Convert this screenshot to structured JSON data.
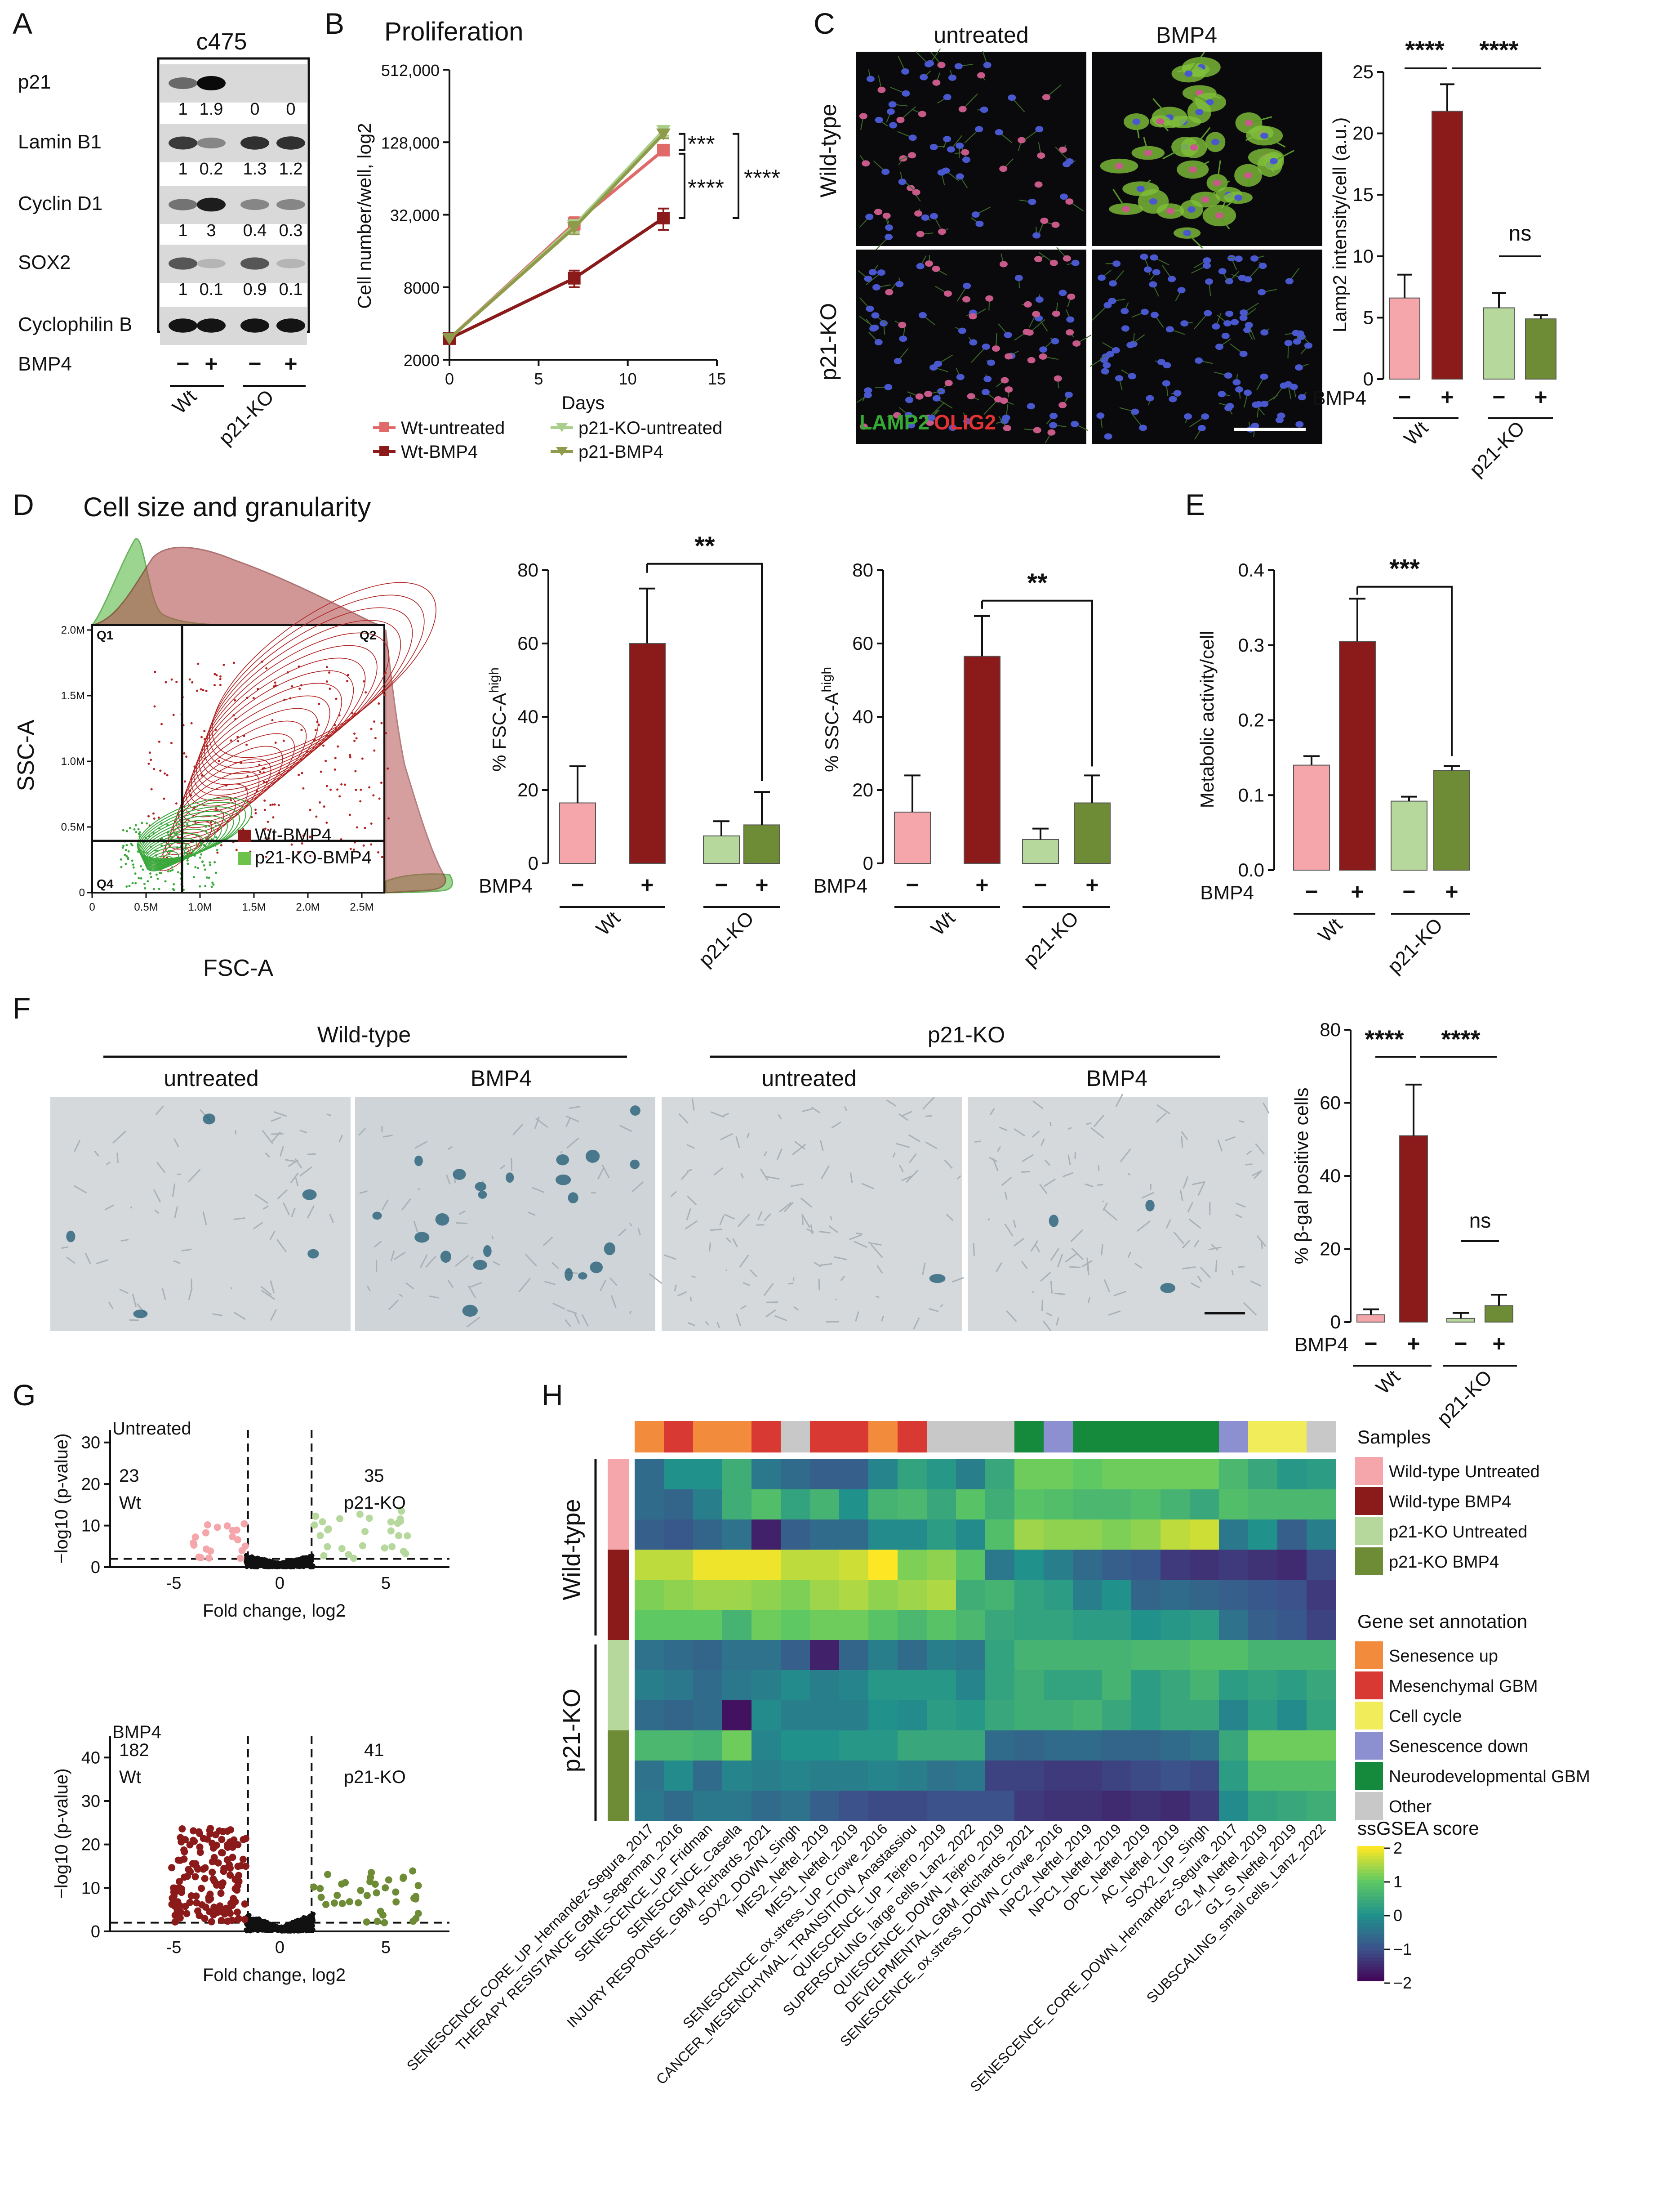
{
  "colors": {
    "wt_untreated": "#f4a6ab",
    "wt_bmp4": "#8b1a1a",
    "ko_untreated": "#b7d89c",
    "ko_bmp4": "#6e8b35",
    "line_wt": "#e06a6a",
    "line_wtb": "#8b1a1a",
    "line_ko": "#a9cf8a",
    "line_kob": "#8f9a4a",
    "ann_senup": "#f28c3c",
    "ann_mes": "#d83a33",
    "ann_cycle": "#f1ec5a",
    "ann_sendown": "#8c8fd0",
    "ann_neuro": "#168a3c",
    "ann_other": "#c8c8c8"
  },
  "panels": {
    "A": "A",
    "B": "B",
    "C": "C",
    "D": "D",
    "E": "E",
    "F": "F",
    "G": "G",
    "H": "H"
  },
  "panelA": {
    "cellline": "c475",
    "rows": [
      {
        "name": "p21",
        "vals": [
          "1",
          "1.9",
          "0",
          "0"
        ]
      },
      {
        "name": "Lamin B1",
        "vals": [
          "1",
          "0.2",
          "1.3",
          "1.2"
        ]
      },
      {
        "name": "Cyclin D1",
        "vals": [
          "1",
          "3",
          "0.4",
          "0.3"
        ]
      },
      {
        "name": "SOX2",
        "vals": [
          "1",
          "0.1",
          "0.9",
          "0.1"
        ]
      },
      {
        "name": "Cyclophilin B",
        "vals": []
      }
    ],
    "bmp4_label": "BMP4",
    "minus": "−",
    "plus": "+",
    "group1": "Wt",
    "group2": "p21-KO"
  },
  "chart_data": [
    {
      "id": "B",
      "type": "line",
      "title": "Proliferation",
      "xlabel": "Days",
      "ylabel": "Cell number/well, log2",
      "x": [
        0,
        7,
        12
      ],
      "yticks": [
        "2000",
        "8000",
        "32,000",
        "128,000",
        "512,000"
      ],
      "xticks": [
        "0",
        "5",
        "10",
        "15"
      ],
      "series": [
        {
          "name": "Wt-untreated",
          "values": [
            3000,
            27000,
            110000
          ]
        },
        {
          "name": "Wt-BMP4",
          "values": [
            3000,
            9500,
            30000
          ]
        },
        {
          "name": "p21-KO-untreated",
          "values": [
            3000,
            26000,
            160000
          ]
        },
        {
          "name": "p21-BMP4",
          "values": [
            3000,
            25000,
            150000
          ]
        }
      ],
      "annotations": [
        "***",
        "****",
        "****"
      ]
    },
    {
      "id": "C",
      "type": "bar",
      "ylabel": "Lamp2 intensity/cell (a.u.)",
      "ylim": [
        0,
        25
      ],
      "yticks": [
        "0",
        "5",
        "10",
        "15",
        "20",
        "25"
      ],
      "categories": [
        "Wt −",
        "Wt +",
        "p21-KO −",
        "p21-KO +"
      ],
      "values": [
        6.6,
        21.8,
        5.8,
        4.9
      ],
      "errors": [
        1.9,
        2.2,
        1.2,
        0.3
      ],
      "annotations": [
        "****",
        "****",
        "ns"
      ]
    },
    {
      "id": "D1",
      "type": "bar",
      "ylabel": "% FSC-A",
      "ylabel_sup": "high",
      "ylim": [
        0,
        80
      ],
      "yticks": [
        "0",
        "20",
        "40",
        "60",
        "80"
      ],
      "categories": [
        "Wt −",
        "Wt +",
        "p21-KO −",
        "p21-KO +"
      ],
      "values": [
        16.5,
        60,
        7.5,
        10.5
      ],
      "errors": [
        10,
        15,
        4,
        9
      ],
      "annotations": [
        "**"
      ]
    },
    {
      "id": "D2",
      "type": "bar",
      "ylabel": "% SSC-A",
      "ylabel_sup": "high",
      "ylim": [
        0,
        80
      ],
      "yticks": [
        "0",
        "20",
        "40",
        "60",
        "80"
      ],
      "categories": [
        "Wt −",
        "Wt +",
        "p21-KO −",
        "p21-KO +"
      ],
      "values": [
        14,
        56.5,
        6.5,
        16.5
      ],
      "errors": [
        10,
        11,
        3,
        7.5
      ],
      "annotations": [
        "**"
      ]
    },
    {
      "id": "E",
      "type": "bar",
      "ylabel": "Metabolic activity/cell",
      "ylim": [
        0,
        0.4
      ],
      "yticks": [
        "0.0",
        "0.1",
        "0.2",
        "0.3",
        "0.4"
      ],
      "categories": [
        "Wt −",
        "Wt +",
        "p21-KO −",
        "p21-KO +"
      ],
      "values": [
        0.14,
        0.305,
        0.092,
        0.133
      ],
      "errors": [
        0.012,
        0.057,
        0.006,
        0.006
      ],
      "annotations": [
        "***"
      ]
    },
    {
      "id": "F",
      "type": "bar",
      "ylabel": "% β-gal positive cells",
      "ylim": [
        0,
        80
      ],
      "yticks": [
        "0",
        "20",
        "40",
        "60",
        "80"
      ],
      "categories": [
        "Wt −",
        "Wt +",
        "p21-KO −",
        "p21-KO +"
      ],
      "values": [
        2,
        51,
        1,
        4.5
      ],
      "errors": [
        1.5,
        14,
        1.5,
        3
      ],
      "annotations": [
        "****",
        "****",
        "ns"
      ]
    },
    {
      "id": "G1",
      "type": "scatter",
      "title": "Untreated",
      "xlabel": "Fold change, log2",
      "ylabel": "−log10 (p-value)",
      "xticks": [
        "-5",
        "0",
        "5"
      ],
      "yticks": [
        "0",
        "10",
        "20",
        "30"
      ],
      "left_count": "23",
      "left_label": "Wt",
      "right_count": "35",
      "right_label": "p21-KO"
    },
    {
      "id": "G2",
      "type": "scatter",
      "title": "BMP4",
      "xlabel": "Fold change, log2",
      "ylabel": "−log10 (p-value)",
      "xticks": [
        "-5",
        "0",
        "5"
      ],
      "yticks": [
        "0",
        "10",
        "20",
        "30",
        "40"
      ],
      "left_count": "182",
      "left_label": "Wt",
      "right_count": "41",
      "right_label": "p21-KO"
    },
    {
      "id": "H",
      "type": "heatmap",
      "row_groups": [
        "Wild-type",
        "p21-KO"
      ],
      "columns": [
        "SENESCENCE CORE_UP_Hernandez-Segura_2017",
        "THERAPY RESISTANCE GBM_Segerman_2016",
        "SENESCENCE_UP_Fridman",
        "SENESCENCE_Casella",
        "INJURY RESPONSE_GBM_Richards_2021",
        "SOX2_DOWN_Singh",
        "MES2_Neftel_2019",
        "MES1_Neftel_2019",
        "SENESCENCE_ox.stress_UP_Crowe_2016",
        "CANCER_MESENCHYMAL_TRANSITION_Anastassiou",
        "QUIESCENCE_UP_Tejero_2019",
        "SUPERSCALING_large cells_Lanz_2022",
        "QUIESCENCE_DOWN_Tejero_2019",
        "DEVELPMENTAL_GBM_Richards_2021",
        "SENESCENCE_ox.stress_DOWN_Crowe_2016",
        "NPC2_Neftel_2019",
        "NPC1_Neftel_2019",
        "OPC_Neftel_2019",
        "AC_Neftel_2019",
        "SOX2_UP_Singh",
        "SENESCENCE_CORE_DOWN_Hernandez-Segura_2017",
        "G2_M_Neftel_2019",
        "G1_S_Neftel_2019",
        "SUBSCALING_small cells_Lanz_2022"
      ],
      "column_annotation": [
        "ann_senup",
        "ann_mes",
        "ann_senup",
        "ann_senup",
        "ann_mes",
        "ann_other",
        "ann_mes",
        "ann_mes",
        "ann_senup",
        "ann_mes",
        "ann_other",
        "ann_other",
        "ann_other",
        "ann_neuro",
        "ann_sendown",
        "ann_neuro",
        "ann_neuro",
        "ann_neuro",
        "ann_neuro",
        "ann_neuro",
        "ann_sendown",
        "ann_cycle",
        "ann_cycle",
        "ann_other"
      ],
      "row_samples": [
        "wt_untreated",
        "wt_untreated",
        "wt_untreated",
        "wt_bmp4",
        "wt_bmp4",
        "wt_bmp4",
        "ko_untreated",
        "ko_untreated",
        "ko_untreated",
        "ko_bmp4",
        "ko_bmp4",
        "ko_bmp4"
      ],
      "values": [
        [
          -0.6,
          0,
          0,
          0.5,
          -0.4,
          -0.6,
          -0.8,
          -0.8,
          -0.2,
          0.3,
          0.1,
          -0.3,
          0.4,
          1.1,
          1.1,
          1.0,
          1.1,
          1.1,
          1.1,
          1.1,
          0.7,
          0.4,
          0.1,
          0.2
        ],
        [
          -0.6,
          -0.7,
          -0.3,
          0.5,
          0.8,
          0.3,
          0.6,
          0.0,
          0.6,
          0.7,
          0.4,
          0.9,
          0.5,
          0.9,
          0.8,
          0.7,
          0.7,
          0.8,
          0.6,
          0.4,
          0.8,
          0.7,
          0.7,
          0.7
        ],
        [
          -0.8,
          -0.9,
          -0.7,
          -0.5,
          -1.6,
          -0.8,
          -0.6,
          -0.6,
          -0.1,
          -0.1,
          0.2,
          -0.1,
          0.8,
          1.4,
          1.3,
          1.3,
          1.2,
          1.3,
          1.6,
          1.7,
          -0.4,
          0.0,
          -0.8,
          -0.3
        ],
        [
          1.6,
          1.6,
          1.9,
          1.9,
          1.9,
          1.6,
          1.6,
          1.7,
          2.0,
          1.2,
          1.3,
          0.9,
          -0.4,
          0.0,
          -0.3,
          -0.6,
          -0.8,
          -0.9,
          -1.3,
          -1.4,
          -1.3,
          -1.4,
          -1.5,
          -1.1
        ],
        [
          1.2,
          1.3,
          1.4,
          1.4,
          1.3,
          1.2,
          1.4,
          1.5,
          1.3,
          1.4,
          1.5,
          0.5,
          0.6,
          0.3,
          0.2,
          -0.3,
          0.0,
          -0.7,
          -0.6,
          -0.7,
          -0.8,
          -0.9,
          -1.0,
          -1.3
        ],
        [
          1.0,
          1.0,
          1.0,
          0.6,
          1.1,
          1.0,
          1.1,
          1.1,
          0.9,
          0.7,
          0.9,
          0.7,
          0.4,
          0.3,
          0.3,
          0.2,
          0.2,
          0.0,
          0.1,
          0.2,
          -0.5,
          -0.8,
          -0.9,
          -1.2
        ],
        [
          -0.5,
          -0.6,
          -0.7,
          -0.5,
          -0.5,
          -0.8,
          -1.6,
          -0.7,
          -0.3,
          -0.6,
          -0.3,
          -0.4,
          0.3,
          0.6,
          0.6,
          0.6,
          0.6,
          0.7,
          0.7,
          0.8,
          0.8,
          0.6,
          0.6,
          0.6
        ],
        [
          -0.3,
          -0.4,
          -0.6,
          -0.4,
          -0.3,
          -0.1,
          -0.3,
          -0.2,
          0.1,
          0.1,
          0.1,
          -0.2,
          0.3,
          0.5,
          0.3,
          0.3,
          0.6,
          0.2,
          0.4,
          0.6,
          0.2,
          0.3,
          0.2,
          0.4
        ],
        [
          -0.6,
          -0.7,
          -0.6,
          -1.8,
          -0.1,
          -0.3,
          -0.3,
          -0.3,
          0.0,
          -0.1,
          0.2,
          0.1,
          0.4,
          0.5,
          0.5,
          0.6,
          0.4,
          0.2,
          0.4,
          0.4,
          -0.2,
          0.2,
          -0.1,
          0.3
        ],
        [
          0.7,
          0.7,
          0.6,
          1.1,
          -0.2,
          0.0,
          0.0,
          0.1,
          0.1,
          0.4,
          0.4,
          0.4,
          -0.6,
          -0.7,
          -0.6,
          -0.6,
          -0.7,
          -0.7,
          -0.6,
          -0.5,
          0.4,
          1.1,
          1.1,
          1.1
        ],
        [
          -0.5,
          -0.1,
          -0.6,
          -0.2,
          -0.3,
          -0.2,
          -0.3,
          -0.3,
          -0.2,
          -0.3,
          -0.5,
          -0.4,
          -1.2,
          -1.2,
          -1.3,
          -1.3,
          -1.2,
          -1.1,
          -1.0,
          -1.1,
          0.2,
          0.8,
          0.8,
          0.8
        ],
        [
          -0.4,
          -0.6,
          -0.4,
          -0.4,
          -0.6,
          -0.5,
          -0.8,
          -1.0,
          -1.1,
          -1.1,
          -1.0,
          -1.0,
          -1.0,
          -1.3,
          -1.4,
          -1.4,
          -1.5,
          -1.4,
          -1.5,
          -1.3,
          -0.1,
          0.3,
          0.4,
          0.5
        ]
      ]
    }
  ],
  "panelC": {
    "col1": "untreated",
    "col2": "BMP4",
    "row1": "Wild-type",
    "row2": "p21-KO",
    "stain1": "LAMP2",
    "stain2": "OLIG2"
  },
  "panelD": {
    "title": "Cell size and granularity",
    "xlabel": "FSC-A",
    "ylabel": "SSC-A",
    "xticks": [
      "0",
      "0.5M",
      "1.0M",
      "1.5M",
      "2.0M",
      "2.5M"
    ],
    "yticks": [
      "0",
      "0.5M",
      "1.0M",
      "1.5M",
      "2.0M"
    ],
    "q1": "Q1",
    "q2": "Q2",
    "q4": "Q4",
    "legend1": "Wt-BMP4",
    "legend2": "p21-KO-BMP4"
  },
  "panelF": {
    "group1": "Wild-type",
    "group2": "p21-KO",
    "col1": "untreated",
    "col2": "BMP4",
    "col3": "untreated",
    "col4": "BMP4"
  },
  "panelH": {
    "legend_samples": "Samples",
    "samples": [
      "Wild-type Untreated",
      "Wild-type BMP4",
      "p21-KO Untreated",
      "p21-KO BMP4"
    ],
    "legend_annot": "Gene set annotation",
    "annots": [
      "Senesence up",
      "Mesenchymal GBM",
      "Cell cycle",
      "Senescence down",
      "Neurodevelopmental GBM",
      "Other"
    ],
    "legend_score": "ssGSEA score",
    "score_ticks": [
      "2",
      "1",
      "0",
      "−1",
      "−2"
    ]
  },
  "common": {
    "bmp4": "BMP4",
    "minus": "−",
    "plus": "+",
    "wt": "Wt",
    "ko": "p21-KO"
  }
}
